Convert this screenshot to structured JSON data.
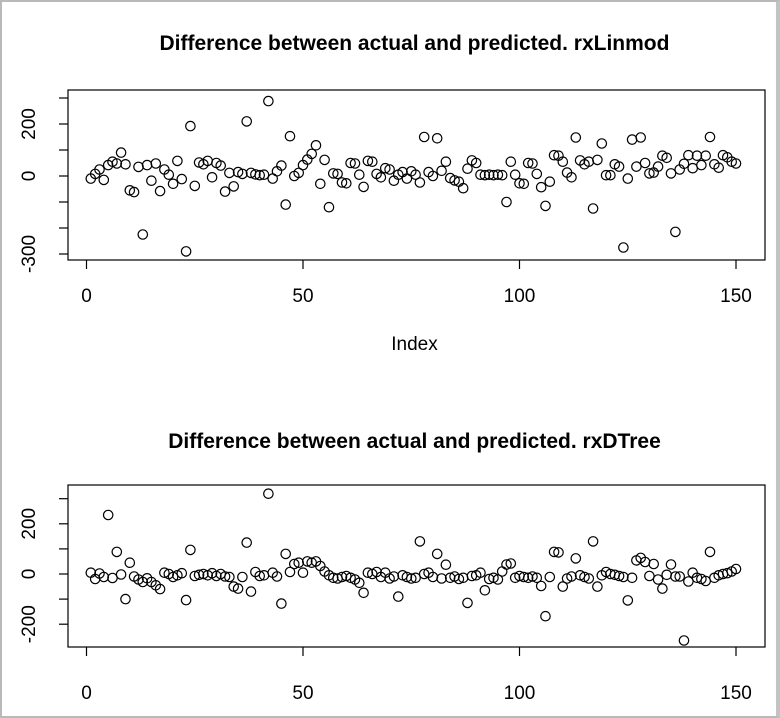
{
  "frame": {
    "background_color": "#ffffff",
    "border_color": "#b7bab7",
    "plot_color": "#000000"
  },
  "chart_data": [
    {
      "type": "scatter",
      "title": "Difference between actual and predicted. rxLinmod",
      "xlabel": "Index",
      "ylabel": "",
      "marker": "open-circle",
      "legend": "none",
      "grid": "off",
      "x_ticks": [
        0,
        50,
        100,
        150
      ],
      "y_ticks_all": [
        300,
        200,
        100,
        0,
        -100,
        -200,
        -300
      ],
      "y_ticks_labeled": [
        200,
        0,
        -300
      ],
      "xlim": [
        -5,
        156
      ],
      "ylim": [
        -323,
        331
      ],
      "x_description": "observation index 1..150",
      "values": [
        -10,
        8,
        25,
        -15,
        42,
        55,
        48,
        90,
        45,
        -55,
        -62,
        35,
        -225,
        42,
        -18,
        48,
        -58,
        25,
        5,
        -30,
        58,
        -12,
        -290,
        192,
        -38,
        52,
        45,
        58,
        -5,
        50,
        40,
        -60,
        12,
        -40,
        15,
        8,
        210,
        12,
        6,
        3,
        5,
        288,
        -10,
        18,
        40,
        -110,
        153,
        0,
        12,
        42,
        63,
        85,
        118,
        -30,
        62,
        -120,
        10,
        8,
        -25,
        -28,
        50,
        48,
        5,
        -42,
        58,
        55,
        8,
        -5,
        30,
        25,
        -18,
        5,
        15,
        -10,
        18,
        5,
        -25,
        150,
        15,
        0,
        145,
        20,
        55,
        -8,
        -17,
        -22,
        -47,
        28,
        60,
        50,
        5,
        3,
        5,
        3,
        5,
        3,
        -100,
        55,
        5,
        -28,
        -30,
        50,
        48,
        8,
        -43,
        -115,
        -22,
        80,
        78,
        55,
        13,
        -5,
        148,
        60,
        45,
        55,
        -125,
        62,
        125,
        3,
        3,
        45,
        36,
        -275,
        -10,
        140,
        36,
        148,
        50,
        10,
        13,
        36,
        78,
        70,
        10,
        -215,
        25,
        47,
        80,
        30,
        78,
        42,
        78,
        150,
        45,
        32,
        80,
        72,
        55,
        48
      ]
    },
    {
      "type": "scatter",
      "title": "Difference between actual and predicted. rxDTree",
      "xlabel": "",
      "ylabel": "",
      "marker": "open-circle",
      "legend": "none",
      "grid": "off",
      "x_ticks": [
        0,
        50,
        100,
        150
      ],
      "y_ticks_all": [
        300,
        200,
        100,
        0,
        -100,
        -200
      ],
      "y_ticks_labeled": [
        200,
        0,
        -200
      ],
      "xlim": [
        -5,
        156
      ],
      "ylim": [
        -291,
        354
      ],
      "x_description": "observation index 1..150",
      "values": [
        5,
        -20,
        2,
        -12,
        235,
        -16,
        88,
        -2,
        -100,
        45,
        -10,
        -22,
        -32,
        -17,
        -32,
        -45,
        -60,
        5,
        0,
        -12,
        -5,
        3,
        -104,
        96,
        -8,
        -3,
        0,
        -5,
        3,
        -8,
        0,
        -10,
        -12,
        -50,
        -58,
        -12,
        125,
        -70,
        8,
        -8,
        -5,
        320,
        5,
        -10,
        -118,
        80,
        8,
        40,
        45,
        5,
        50,
        45,
        50,
        32,
        10,
        -5,
        -15,
        -18,
        -12,
        -8,
        -15,
        -22,
        -35,
        -75,
        5,
        0,
        8,
        -12,
        5,
        -18,
        -10,
        -90,
        -5,
        -12,
        -18,
        -15,
        130,
        0,
        5,
        -12,
        80,
        -18,
        37,
        -15,
        -10,
        -20,
        -15,
        -115,
        -8,
        -5,
        5,
        -65,
        -20,
        -15,
        -22,
        10,
        38,
        42,
        -15,
        -8,
        -12,
        -15,
        -10,
        -15,
        -48,
        -168,
        -12,
        88,
        86,
        -50,
        -18,
        -10,
        62,
        -5,
        -12,
        -18,
        130,
        -50,
        -5,
        8,
        0,
        -3,
        -8,
        -12,
        -105,
        -15,
        54,
        64,
        48,
        -8,
        40,
        -22,
        -58,
        -3,
        38,
        -10,
        -10,
        -265,
        -30,
        5,
        -15,
        -20,
        -28,
        88,
        -15,
        -5,
        0,
        3,
        10,
        20
      ]
    }
  ]
}
